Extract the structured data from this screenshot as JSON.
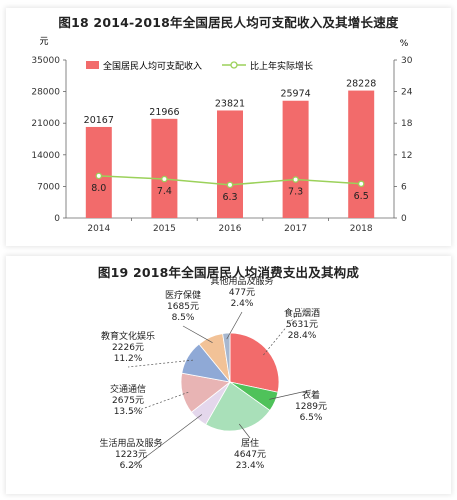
{
  "chart_data": [
    {
      "type": "bar+line",
      "title": "图18   2014-2018年全国居民人均可支配收入及其增长速度",
      "y_left_unit": "元",
      "y_right_unit": "%",
      "categories": [
        "2014",
        "2015",
        "2016",
        "2017",
        "2018"
      ],
      "y_left_ticks": [
        "0",
        "7000",
        "14000",
        "21000",
        "28000",
        "35000"
      ],
      "y_right_ticks": [
        "0",
        "6",
        "12",
        "18",
        "24",
        "30"
      ],
      "ylim_left": [
        0,
        35000
      ],
      "ylim_right": [
        0,
        30
      ],
      "series": [
        {
          "name": "全国居民人均可支配收入",
          "type": "bar",
          "axis": "left",
          "color": "#f26b6b",
          "values": [
            20167,
            21966,
            23821,
            25974,
            28228
          ],
          "labels": [
            "20167",
            "21966",
            "23821",
            "25974",
            "28228"
          ]
        },
        {
          "name": "比上年实际增长",
          "type": "line",
          "axis": "right",
          "color": "#9bd15a",
          "values": [
            8.0,
            7.4,
            6.3,
            7.3,
            6.5
          ],
          "labels": [
            "8.0",
            "7.4",
            "6.3",
            "7.3",
            "6.5"
          ]
        }
      ],
      "legend_position": "top-left",
      "grid": false
    },
    {
      "type": "pie",
      "title": "图19   2018年全国居民人均消费支出及其构成",
      "slices": [
        {
          "name": "食品烟酒",
          "value": 5631,
          "value_text": "5631元",
          "percent": 28.4,
          "percent_text": "28.4%",
          "color": "#f26b6b"
        },
        {
          "name": "衣着",
          "value": 1289,
          "value_text": "1289元",
          "percent": 6.5,
          "percent_text": "6.5%",
          "color": "#4fc25a"
        },
        {
          "name": "居住",
          "value": 4647,
          "value_text": "4647元",
          "percent": 23.4,
          "percent_text": "23.4%",
          "color": "#a9e0b9"
        },
        {
          "name": "生活用品及服务",
          "value": 1223,
          "value_text": "1223元",
          "percent": 6.2,
          "percent_text": "6.2%",
          "color": "#e4d7ec"
        },
        {
          "name": "交通通信",
          "value": 2675,
          "value_text": "2675元",
          "percent": 13.5,
          "percent_text": "13.5%",
          "color": "#e8b4b4"
        },
        {
          "name": "教育文化娱乐",
          "value": 2226,
          "value_text": "2226元",
          "percent": 11.2,
          "percent_text": "11.2%",
          "color": "#8fa9d6"
        },
        {
          "name": "医疗保健",
          "value": 1685,
          "value_text": "1685元",
          "percent": 8.5,
          "percent_text": "8.5%",
          "color": "#f2c297"
        },
        {
          "name": "其他用品及服务",
          "value": 477,
          "value_text": "477元",
          "percent": 2.4,
          "percent_text": "2.4%",
          "color": "#a7b7cf"
        }
      ]
    }
  ]
}
